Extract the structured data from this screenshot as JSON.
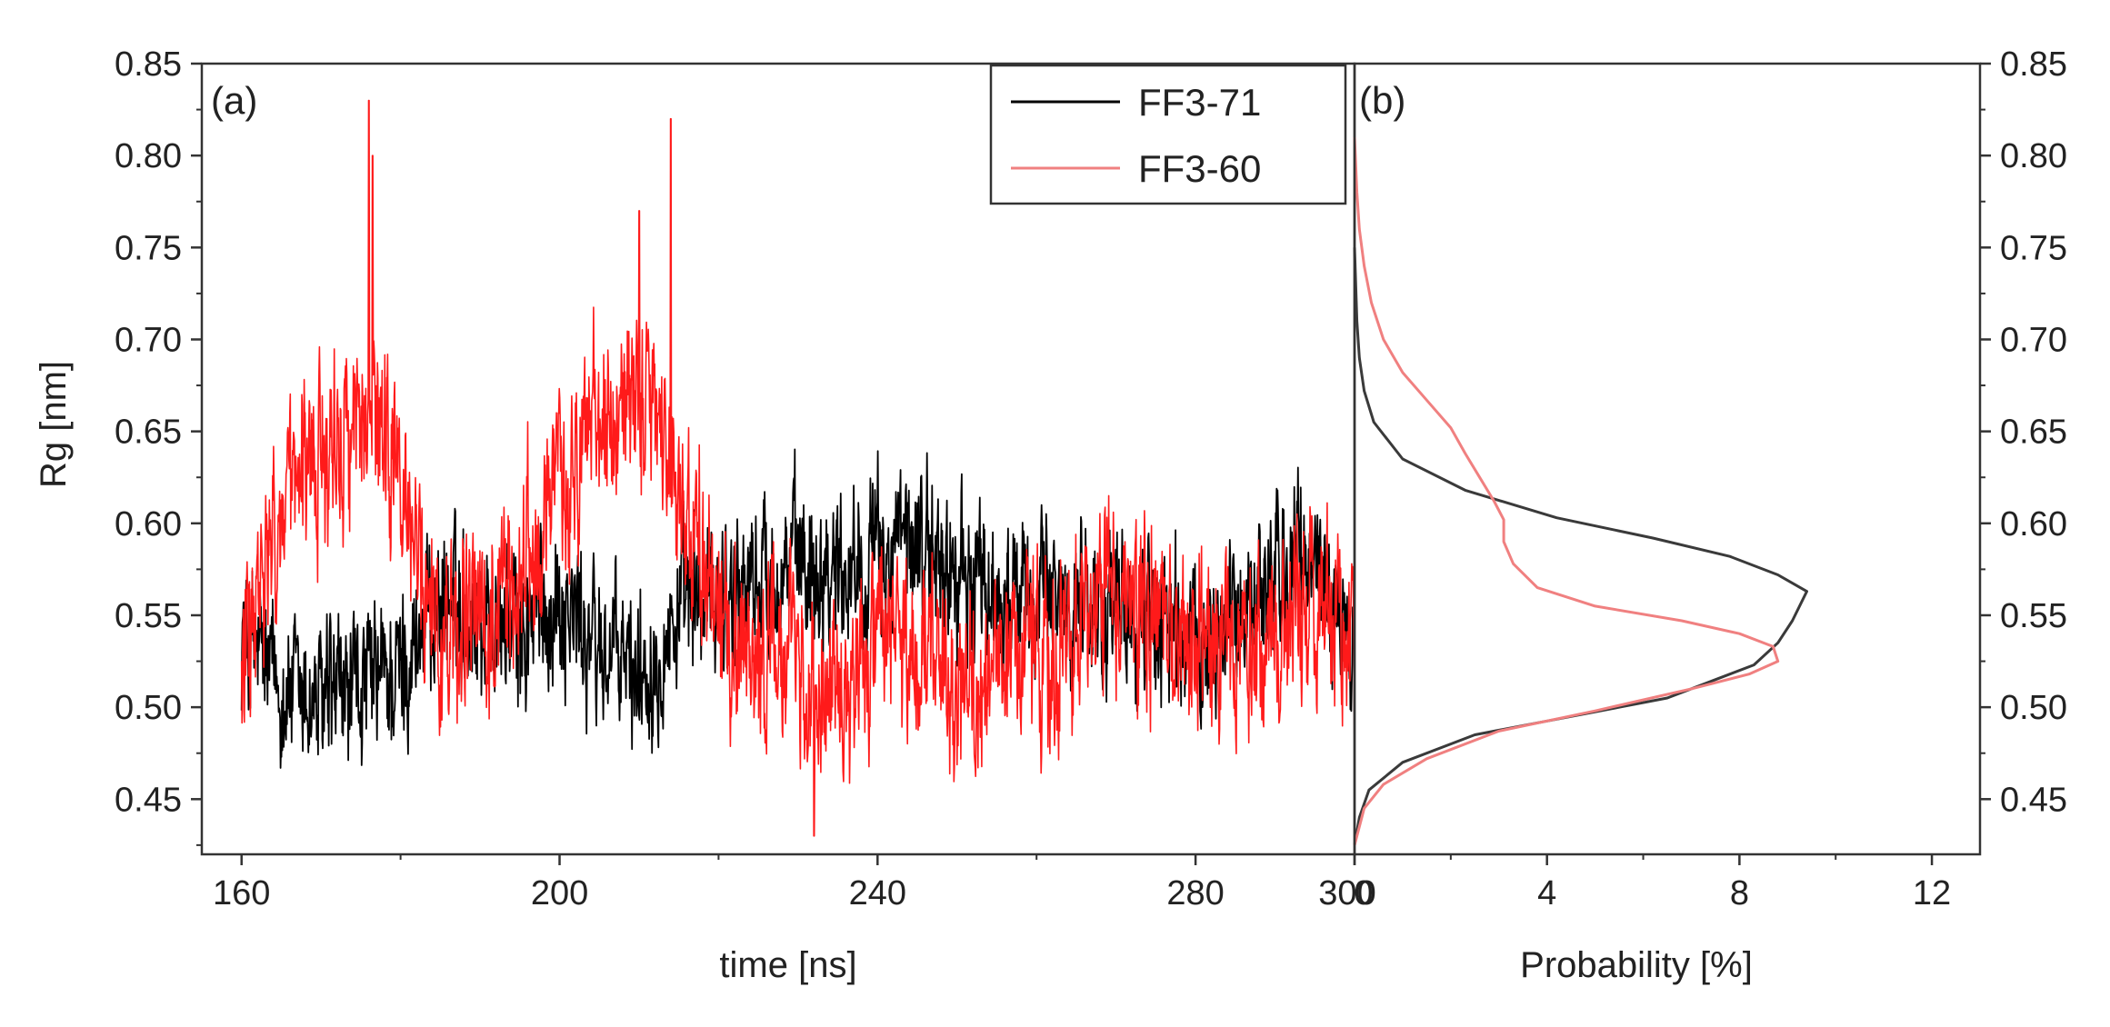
{
  "chart_data": [
    {
      "panel": "(a)",
      "type": "line",
      "xlabel": "time [ns]",
      "ylabel": "Rg  [nm]",
      "xlim": [
        155,
        300
      ],
      "ylim": [
        0.42,
        0.85
      ],
      "xticks": [
        160,
        200,
        240,
        280,
        300
      ],
      "xtick_labels": [
        "160",
        "200",
        "240",
        "280",
        "300"
      ],
      "yticks": [
        0.45,
        0.5,
        0.55,
        0.6,
        0.65,
        0.7,
        0.75,
        0.8,
        0.85
      ],
      "ytick_labels": [
        "0.45",
        "0.50",
        "0.55",
        "0.60",
        "0.65",
        "0.70",
        "0.75",
        "0.80",
        "0.85"
      ],
      "legend": {
        "placement": "top-right",
        "entries": [
          "FF3-71",
          "FF3-60"
        ]
      },
      "series": [
        {
          "name": "FF3-71",
          "color": "#000000",
          "x": [
            160,
            165,
            170,
            175,
            180,
            185,
            190,
            195,
            200,
            205,
            210,
            215,
            220,
            225,
            230,
            235,
            240,
            245,
            250,
            255,
            260,
            265,
            270,
            275,
            280,
            285,
            290,
            295,
            300
          ],
          "y": [
            0.54,
            0.51,
            0.5,
            0.51,
            0.52,
            0.56,
            0.55,
            0.54,
            0.56,
            0.53,
            0.52,
            0.55,
            0.56,
            0.57,
            0.58,
            0.58,
            0.58,
            0.59,
            0.57,
            0.56,
            0.56,
            0.56,
            0.55,
            0.55,
            0.53,
            0.55,
            0.57,
            0.58,
            0.53
          ],
          "noise_amplitude": 0.03
        },
        {
          "name": "FF3-60",
          "color": "#ff1a1a",
          "x": [
            160,
            165,
            170,
            175,
            180,
            185,
            190,
            195,
            200,
            205,
            210,
            215,
            220,
            225,
            230,
            235,
            240,
            245,
            250,
            255,
            260,
            265,
            270,
            275,
            280,
            285,
            290,
            295,
            300
          ],
          "y": [
            0.52,
            0.6,
            0.64,
            0.66,
            0.62,
            0.54,
            0.55,
            0.57,
            0.62,
            0.66,
            0.67,
            0.62,
            0.55,
            0.53,
            0.52,
            0.51,
            0.53,
            0.54,
            0.51,
            0.51,
            0.52,
            0.55,
            0.57,
            0.55,
            0.53,
            0.53,
            0.54,
            0.55,
            0.53
          ],
          "noise_amplitude": 0.035,
          "spikes": [
            {
              "x": 176,
              "y": 0.83
            },
            {
              "x": 176.5,
              "y": 0.8
            },
            {
              "x": 210,
              "y": 0.77
            },
            {
              "x": 214,
              "y": 0.82
            },
            {
              "x": 232,
              "y": 0.43
            }
          ]
        }
      ]
    },
    {
      "panel": "(b)",
      "type": "line",
      "xlabel": "Probability [%]",
      "ylabel": "",
      "xlim": [
        0,
        13
      ],
      "ylim": [
        0.42,
        0.85
      ],
      "xticks": [
        0,
        4,
        8,
        12
      ],
      "xtick_labels": [
        "0",
        "4",
        "8",
        "12"
      ],
      "yticks": [
        0.45,
        0.5,
        0.55,
        0.6,
        0.65,
        0.7,
        0.75,
        0.8,
        0.85
      ],
      "ytick_labels": [
        "0.45",
        "0.50",
        "0.55",
        "0.60",
        "0.65",
        "0.70",
        "0.75",
        "0.80",
        "0.85"
      ],
      "series": [
        {
          "name": "FF3-71",
          "color": "#3a3a3a",
          "points": [
            [
              0.0,
              0.425
            ],
            [
              0.1,
              0.44
            ],
            [
              0.3,
              0.455
            ],
            [
              1.0,
              0.47
            ],
            [
              2.5,
              0.485
            ],
            [
              4.5,
              0.495
            ],
            [
              6.5,
              0.505
            ],
            [
              7.5,
              0.515
            ],
            [
              8.3,
              0.523
            ],
            [
              8.8,
              0.535
            ],
            [
              9.1,
              0.547
            ],
            [
              9.4,
              0.563
            ],
            [
              8.8,
              0.572
            ],
            [
              7.8,
              0.582
            ],
            [
              6.2,
              0.592
            ],
            [
              4.2,
              0.603
            ],
            [
              2.3,
              0.618
            ],
            [
              1.0,
              0.635
            ],
            [
              0.4,
              0.655
            ],
            [
              0.2,
              0.672
            ],
            [
              0.1,
              0.69
            ],
            [
              0.05,
              0.71
            ],
            [
              0.0,
              0.75
            ]
          ]
        },
        {
          "name": "FF3-60",
          "color": "#f08080",
          "points": [
            [
              0.0,
              0.425
            ],
            [
              0.2,
              0.445
            ],
            [
              0.6,
              0.458
            ],
            [
              1.5,
              0.472
            ],
            [
              3.0,
              0.487
            ],
            [
              5.0,
              0.498
            ],
            [
              7.0,
              0.51
            ],
            [
              8.2,
              0.518
            ],
            [
              8.8,
              0.525
            ],
            [
              8.7,
              0.533
            ],
            [
              8.0,
              0.54
            ],
            [
              6.8,
              0.547
            ],
            [
              5.0,
              0.555
            ],
            [
              3.8,
              0.565
            ],
            [
              3.3,
              0.578
            ],
            [
              3.1,
              0.59
            ],
            [
              3.1,
              0.602
            ],
            [
              2.9,
              0.612
            ],
            [
              2.6,
              0.625
            ],
            [
              2.3,
              0.638
            ],
            [
              2.0,
              0.652
            ],
            [
              1.5,
              0.667
            ],
            [
              1.0,
              0.682
            ],
            [
              0.6,
              0.7
            ],
            [
              0.35,
              0.72
            ],
            [
              0.2,
              0.74
            ],
            [
              0.1,
              0.76
            ],
            [
              0.05,
              0.78
            ],
            [
              0.0,
              0.81
            ]
          ]
        }
      ]
    }
  ]
}
